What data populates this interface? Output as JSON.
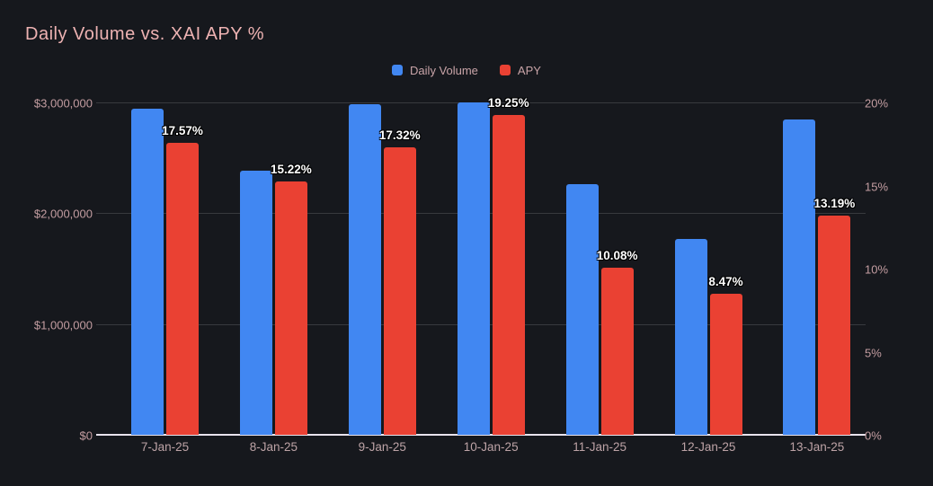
{
  "header": {
    "title": "Daily Volume vs. XAI APY %"
  },
  "legend": [
    {
      "label": "Daily Volume",
      "color": "#4187f2"
    },
    {
      "label": "APY",
      "color": "#ea4133"
    }
  ],
  "chart_data": {
    "type": "bar",
    "title": "Daily Volume vs. XAI APY %",
    "categories": [
      "7-Jan-25",
      "8-Jan-25",
      "9-Jan-25",
      "10-Jan-25",
      "11-Jan-25",
      "12-Jan-25",
      "13-Jan-25"
    ],
    "series": [
      {
        "name": "Daily Volume",
        "axis": "left",
        "color": "#4187f2",
        "values": [
          2940000,
          2380000,
          2980000,
          3000000,
          2260000,
          1770000,
          2850000
        ]
      },
      {
        "name": "APY",
        "axis": "right",
        "color": "#ea4133",
        "values": [
          17.57,
          15.22,
          17.32,
          19.25,
          10.08,
          8.47,
          13.19
        ],
        "data_labels": [
          "17.57%",
          "15.22%",
          "17.32%",
          "19.25%",
          "10.08%",
          "8.47%",
          "13.19%"
        ]
      }
    ],
    "left_axis": {
      "min": 0,
      "max": 3000000,
      "ticks": [
        "$3,000,000",
        "$2,000,000",
        "$1,000,000",
        "$0"
      ]
    },
    "right_axis": {
      "min": 0,
      "max": 20,
      "ticks": [
        "20%",
        "15%",
        "10%",
        "5%",
        "0%"
      ]
    },
    "grid": "horizontal",
    "legend_position": "top-center"
  },
  "colors": {
    "background": "#16181d",
    "title_text": "#edb2b2",
    "axis_text": "#c39da1",
    "grid_line": "rgba(255,255,255,0.15)",
    "baseline": "#e9e4ee",
    "volume_bar": "#4187f2",
    "apy_bar": "#ea4133",
    "data_label_text": "#ffffff"
  }
}
